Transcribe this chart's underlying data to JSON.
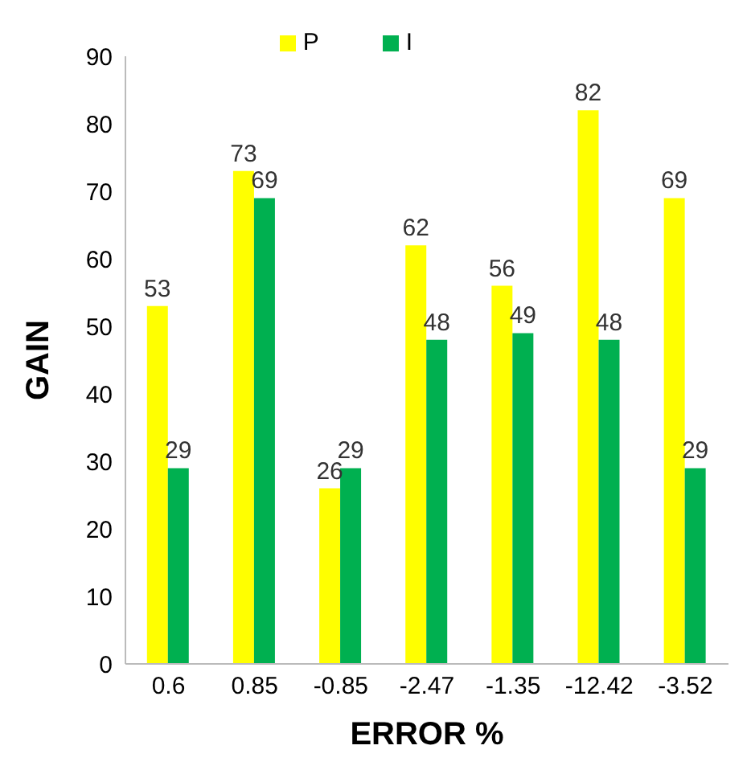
{
  "chart_data": {
    "type": "bar",
    "xlabel": "ERROR %",
    "ylabel": "GAIN",
    "categories": [
      "0.6",
      "0.85",
      "-0.85",
      "-2.47",
      "-1.35",
      "-12.42",
      "-3.52"
    ],
    "series": [
      {
        "name": "P",
        "color": "#ffff00",
        "values": [
          53,
          73,
          26,
          62,
          56,
          82,
          69
        ]
      },
      {
        "name": "I",
        "color": "#00b050",
        "values": [
          29,
          69,
          29,
          48,
          49,
          48,
          29
        ]
      }
    ],
    "ylim": [
      0,
      90
    ],
    "yticks": [
      0,
      10,
      20,
      30,
      40,
      50,
      60,
      70,
      80,
      90
    ],
    "grid": false,
    "legend": "top",
    "data_labels": true
  }
}
